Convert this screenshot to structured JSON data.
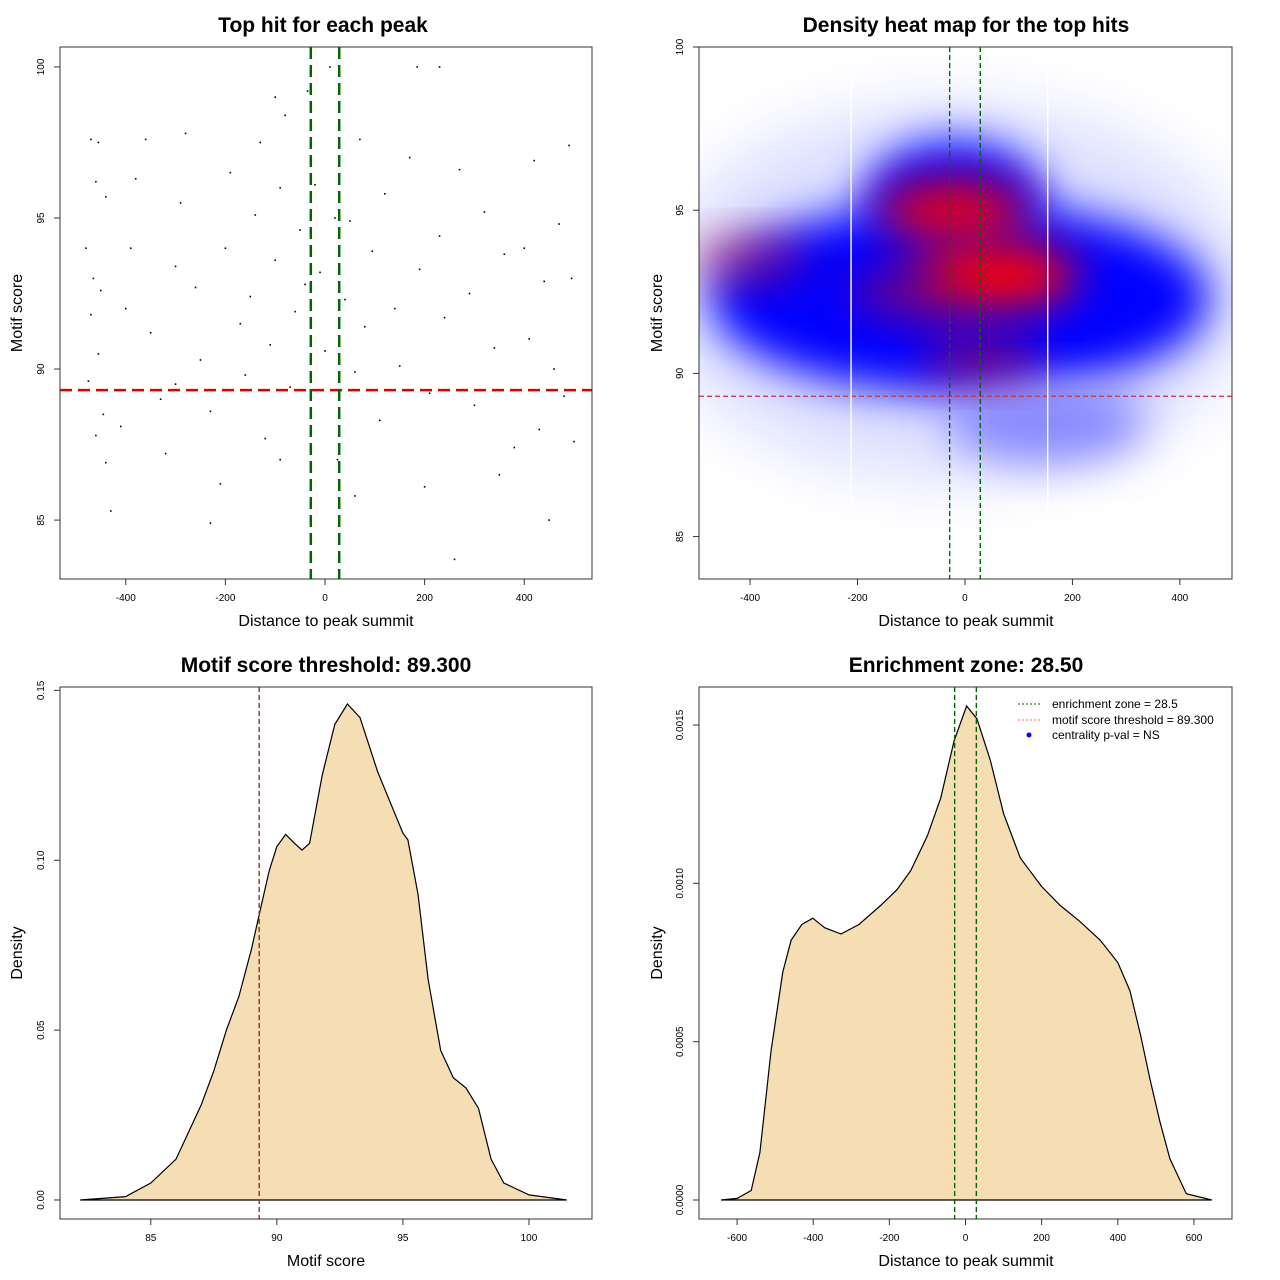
{
  "chart_data": [
    {
      "type": "scatter",
      "title": "Top hit for each peak",
      "xlabel": "Distance to peak summit",
      "ylabel": "Motif score",
      "xlim": [
        -532,
        536
      ],
      "ylim": [
        83.05,
        100.66
      ],
      "xticks": [
        "-400",
        "-200",
        "0",
        "200",
        "400"
      ],
      "yticks": [
        "85",
        "90",
        "95",
        "100"
      ],
      "hlines": [
        {
          "y": 89.3,
          "color": "#dd0000",
          "style": "dashed"
        }
      ],
      "vlines": [
        {
          "x": -28.5,
          "color": "#006600",
          "style": "dashed"
        },
        {
          "x": 28.5,
          "color": "#006600",
          "style": "dashed"
        }
      ],
      "points_sample": [
        [
          -470,
          97.6
        ],
        [
          -455,
          97.5
        ],
        [
          -460,
          96.2
        ],
        [
          -440,
          95.7
        ],
        [
          -480,
          94.0
        ],
        [
          -465,
          93.0
        ],
        [
          -450,
          92.6
        ],
        [
          -470,
          91.8
        ],
        [
          -455,
          90.5
        ],
        [
          -475,
          89.6
        ],
        [
          -445,
          88.5
        ],
        [
          -460,
          87.8
        ],
        [
          -440,
          86.9
        ],
        [
          -430,
          85.3
        ],
        [
          -410,
          88.1
        ],
        [
          -400,
          92.0
        ],
        [
          -390,
          94.0
        ],
        [
          -380,
          96.3
        ],
        [
          -360,
          97.6
        ],
        [
          -350,
          91.2
        ],
        [
          -330,
          89.0
        ],
        [
          -320,
          87.2
        ],
        [
          -300,
          93.4
        ],
        [
          -290,
          95.5
        ],
        [
          -280,
          97.8
        ],
        [
          -260,
          92.7
        ],
        [
          -250,
          90.3
        ],
        [
          -230,
          88.6
        ],
        [
          -210,
          86.2
        ],
        [
          -200,
          94.0
        ],
        [
          -190,
          96.5
        ],
        [
          -170,
          91.5
        ],
        [
          -160,
          89.8
        ],
        [
          -150,
          92.4
        ],
        [
          -140,
          95.1
        ],
        [
          -130,
          97.5
        ],
        [
          -120,
          87.7
        ],
        [
          -110,
          90.8
        ],
        [
          -100,
          93.6
        ],
        [
          -90,
          96.0
        ],
        [
          -80,
          98.4
        ],
        [
          -70,
          89.4
        ],
        [
          -60,
          91.9
        ],
        [
          -50,
          94.6
        ],
        [
          -40,
          92.8
        ],
        [
          -35,
          99.2
        ],
        [
          -20,
          96.1
        ],
        [
          -10,
          93.2
        ],
        [
          0,
          90.6
        ],
        [
          10,
          100.0
        ],
        [
          20,
          95.0
        ],
        [
          25,
          87.0
        ],
        [
          40,
          92.3
        ],
        [
          50,
          94.9
        ],
        [
          60,
          89.9
        ],
        [
          70,
          97.6
        ],
        [
          80,
          91.4
        ],
        [
          95,
          93.9
        ],
        [
          110,
          88.3
        ],
        [
          120,
          95.8
        ],
        [
          140,
          92.0
        ],
        [
          150,
          90.1
        ],
        [
          170,
          97.0
        ],
        [
          190,
          93.3
        ],
        [
          200,
          86.1
        ],
        [
          210,
          89.2
        ],
        [
          230,
          94.4
        ],
        [
          240,
          91.7
        ],
        [
          260,
          83.7
        ],
        [
          270,
          96.6
        ],
        [
          290,
          92.5
        ],
        [
          300,
          88.8
        ],
        [
          320,
          95.2
        ],
        [
          340,
          90.7
        ],
        [
          360,
          93.8
        ],
        [
          380,
          87.4
        ],
        [
          400,
          94.0
        ],
        [
          410,
          91.0
        ],
        [
          420,
          96.9
        ],
        [
          430,
          88.0
        ],
        [
          440,
          92.9
        ],
        [
          450,
          85.0
        ],
        [
          460,
          90.0
        ],
        [
          470,
          94.8
        ],
        [
          480,
          89.1
        ],
        [
          490,
          97.4
        ],
        [
          495,
          93.0
        ],
        [
          500,
          87.6
        ],
        [
          -230,
          84.9
        ],
        [
          -100,
          99.0
        ],
        [
          185,
          100.0
        ],
        [
          230,
          100.0
        ],
        [
          -90,
          87.0
        ],
        [
          60,
          85.8
        ],
        [
          -300,
          89.5
        ],
        [
          350,
          86.5
        ]
      ]
    },
    {
      "type": "heatmap",
      "title": "Density heat map for the top hits",
      "xlabel": "Distance to peak summit",
      "ylabel": "Motif score",
      "xlim": [
        -495,
        497
      ],
      "ylim": [
        83.7,
        100
      ],
      "xticks": [
        "-400",
        "-200",
        "0",
        "200",
        "400"
      ],
      "yticks": [
        "85",
        "90",
        "95",
        "100"
      ],
      "colors": [
        "#ffffff",
        "#0000ff",
        "#ff0000"
      ],
      "hlines": [
        {
          "y": 89.3,
          "color": "#cc3333",
          "style": "dashed"
        }
      ],
      "vlines": [
        {
          "x": -28.5,
          "color": "#006600",
          "style": "dashed"
        },
        {
          "x": 28.5,
          "color": "#006600",
          "style": "dashed"
        },
        {
          "x": -212,
          "color": "#ffffff",
          "style": "solid"
        },
        {
          "x": 154,
          "color": "#ffffff",
          "style": "solid"
        }
      ],
      "hotspots": [
        {
          "x": 60,
          "y": 93.0,
          "level": 1.0
        },
        {
          "x": -20,
          "y": 95.0,
          "level": 0.9
        },
        {
          "x": -100,
          "y": 92.5,
          "level": 0.6
        },
        {
          "x": -400,
          "y": 93.5,
          "level": 0.55
        },
        {
          "x": 30,
          "y": 90.5,
          "level": 0.6
        }
      ]
    },
    {
      "type": "area",
      "title": "Motif score threshold: 89.300",
      "xlabel": "Motif score",
      "ylabel": "Density",
      "xlim": [
        81.4,
        102.5
      ],
      "ylim": [
        -0.0056,
        0.151
      ],
      "xticks": [
        "85",
        "90",
        "95",
        "100"
      ],
      "yticks": [
        "0.00",
        "0.05",
        "0.10",
        "0.15"
      ],
      "fill": "#f5deb3",
      "vlines": [
        {
          "x": 89.3,
          "color": "#aa2222",
          "style": "dashed"
        }
      ],
      "x": [
        82.2,
        84,
        85,
        86,
        87,
        87.5,
        88,
        88.5,
        89,
        89.3,
        89.7,
        90,
        90.35,
        90.7,
        91,
        91.3,
        91.8,
        92.3,
        92.8,
        93.3,
        94,
        95,
        95.2,
        95.6,
        96,
        96.5,
        97,
        97.5,
        98,
        98.5,
        99,
        100,
        101.5
      ],
      "y": [
        0,
        0.001,
        0.005,
        0.012,
        0.028,
        0.038,
        0.05,
        0.06,
        0.074,
        0.084,
        0.097,
        0.104,
        0.1076,
        0.105,
        0.103,
        0.105,
        0.125,
        0.14,
        0.146,
        0.142,
        0.126,
        0.108,
        0.106,
        0.09,
        0.065,
        0.044,
        0.036,
        0.033,
        0.027,
        0.012,
        0.005,
        0.0015,
        0
      ]
    },
    {
      "type": "area",
      "title": "Enrichment zone: 28.50",
      "xlabel": "Distance to peak summit",
      "ylabel": "Density",
      "xlim": [
        -700,
        700
      ],
      "ylim": [
        -6e-05,
        0.00162
      ],
      "xticks": [
        "-600",
        "-400",
        "-200",
        "0",
        "200",
        "400",
        "600"
      ],
      "yticks": [
        "0.0000",
        "0.0005",
        "0.0010",
        "0.0015"
      ],
      "fill": "#f5deb3",
      "vlines": [
        {
          "x": -28.5,
          "color": "#006600",
          "style": "dashed"
        },
        {
          "x": 28.5,
          "color": "#006600",
          "style": "dashed"
        }
      ],
      "x": [
        -642,
        -600,
        -563,
        -540,
        -511,
        -480,
        -458,
        -430,
        -401,
        -370,
        -327,
        -280,
        -223,
        -180,
        -144,
        -100,
        -65,
        -30,
        3,
        30,
        65,
        100,
        144,
        200,
        249,
        300,
        354,
        400,
        432,
        460,
        485,
        510,
        537,
        580,
        647
      ],
      "y": [
        0,
        5e-06,
        3e-05,
        0.00015,
        0.00047,
        0.00072,
        0.00082,
        0.00087,
        0.00089,
        0.00086,
        0.00084,
        0.00087,
        0.00093,
        0.00098,
        0.00104,
        0.00115,
        0.00127,
        0.00145,
        0.00156,
        0.00152,
        0.00139,
        0.00122,
        0.00108,
        0.00099,
        0.00093,
        0.00088,
        0.00082,
        0.00075,
        0.00066,
        0.00052,
        0.00038,
        0.00025,
        0.00013,
        2e-05,
        0
      ],
      "legend": [
        {
          "label": "enrichment zone = 28.5",
          "color": "#006600",
          "symbol": "dotted-line"
        },
        {
          "label": "motif score threshold = 89.300",
          "color": "#ff6666",
          "symbol": "dotted-line"
        },
        {
          "label": "centrality p-val = NS",
          "color": "#0000ff",
          "symbol": "dot"
        }
      ],
      "legend_position": "top-right"
    }
  ]
}
